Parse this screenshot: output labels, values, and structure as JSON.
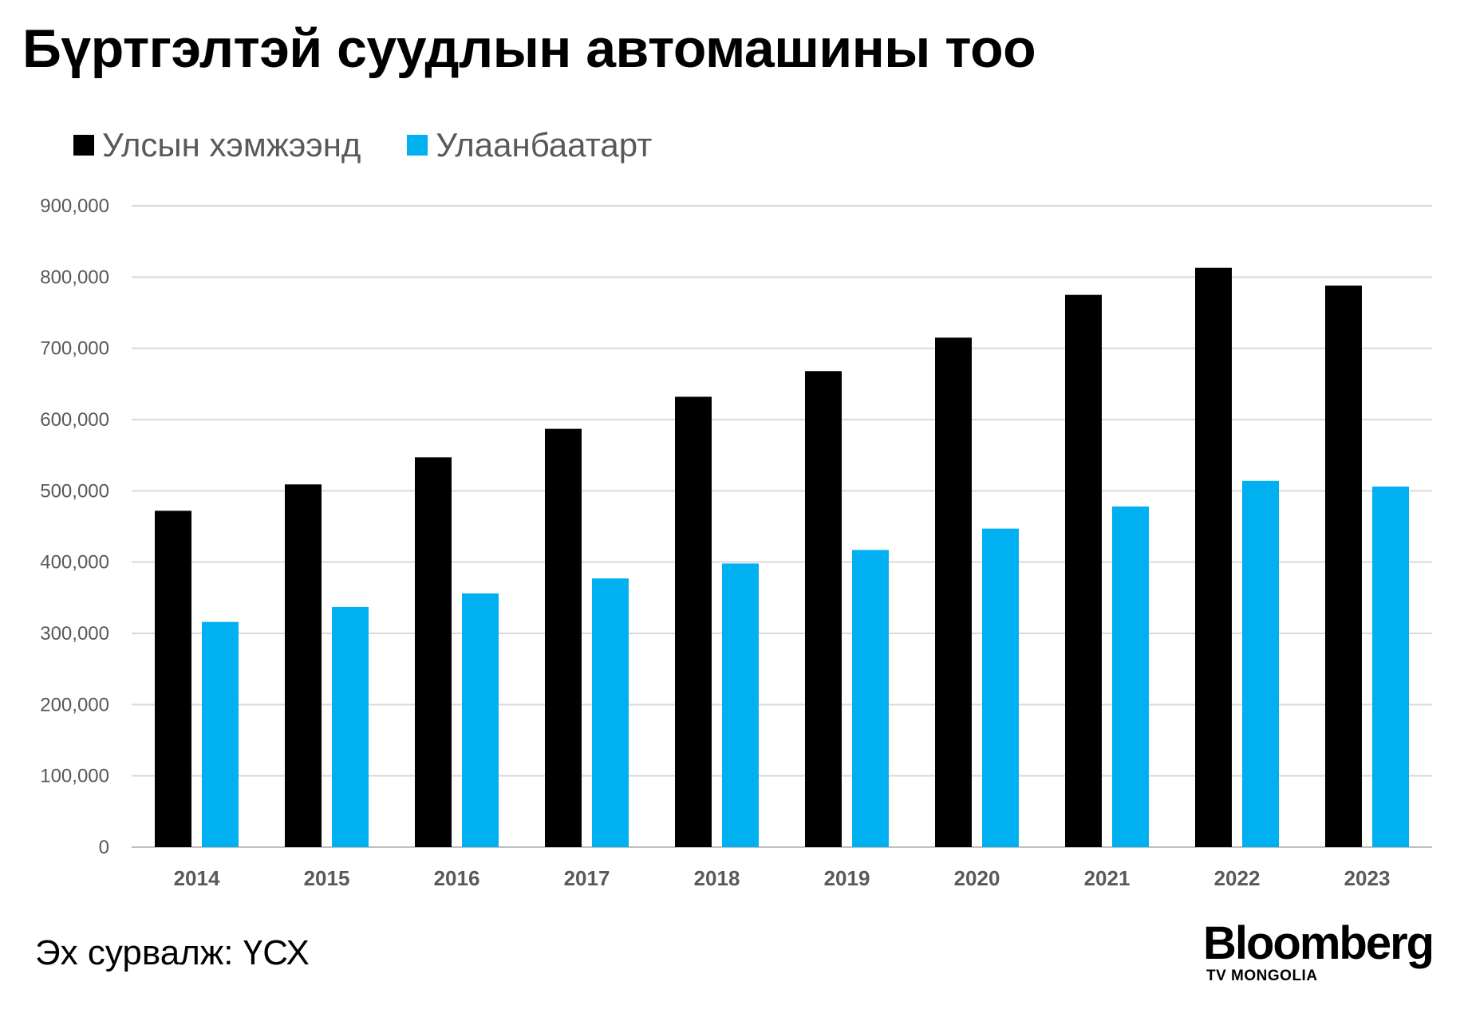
{
  "title": "Бүртгэлтэй суудлын автомашины тоо",
  "source": "Эх сурвалж: ҮСХ",
  "brand": {
    "name": "Bloomberg",
    "sub": "TV MONGOLIA"
  },
  "chart_data": {
    "type": "bar",
    "title": "Бүртгэлтэй суудлын автомашины тоо",
    "xlabel": "",
    "ylabel": "",
    "categories": [
      "2014",
      "2015",
      "2016",
      "2017",
      "2018",
      "2019",
      "2020",
      "2021",
      "2022",
      "2023"
    ],
    "series": [
      {
        "name": "Улсын хэмжээнд",
        "color": "#000000",
        "values": [
          472000,
          509000,
          547000,
          587000,
          632000,
          668000,
          715000,
          775000,
          813000,
          788000
        ]
      },
      {
        "name": "Улаанбаатарт",
        "color": "#00b0f0",
        "values": [
          316000,
          337000,
          356000,
          377000,
          398000,
          417000,
          447000,
          478000,
          514000,
          506000
        ]
      }
    ],
    "ylim": [
      0,
      900000
    ],
    "yticks": [
      "0",
      "100,000",
      "200,000",
      "300,000",
      "400,000",
      "500,000",
      "600,000",
      "700,000",
      "800,000",
      "900,000"
    ],
    "ytick_values": [
      0,
      100000,
      200000,
      300000,
      400000,
      500000,
      600000,
      700000,
      800000,
      900000
    ],
    "grid": true,
    "legend_position": "top-left"
  }
}
